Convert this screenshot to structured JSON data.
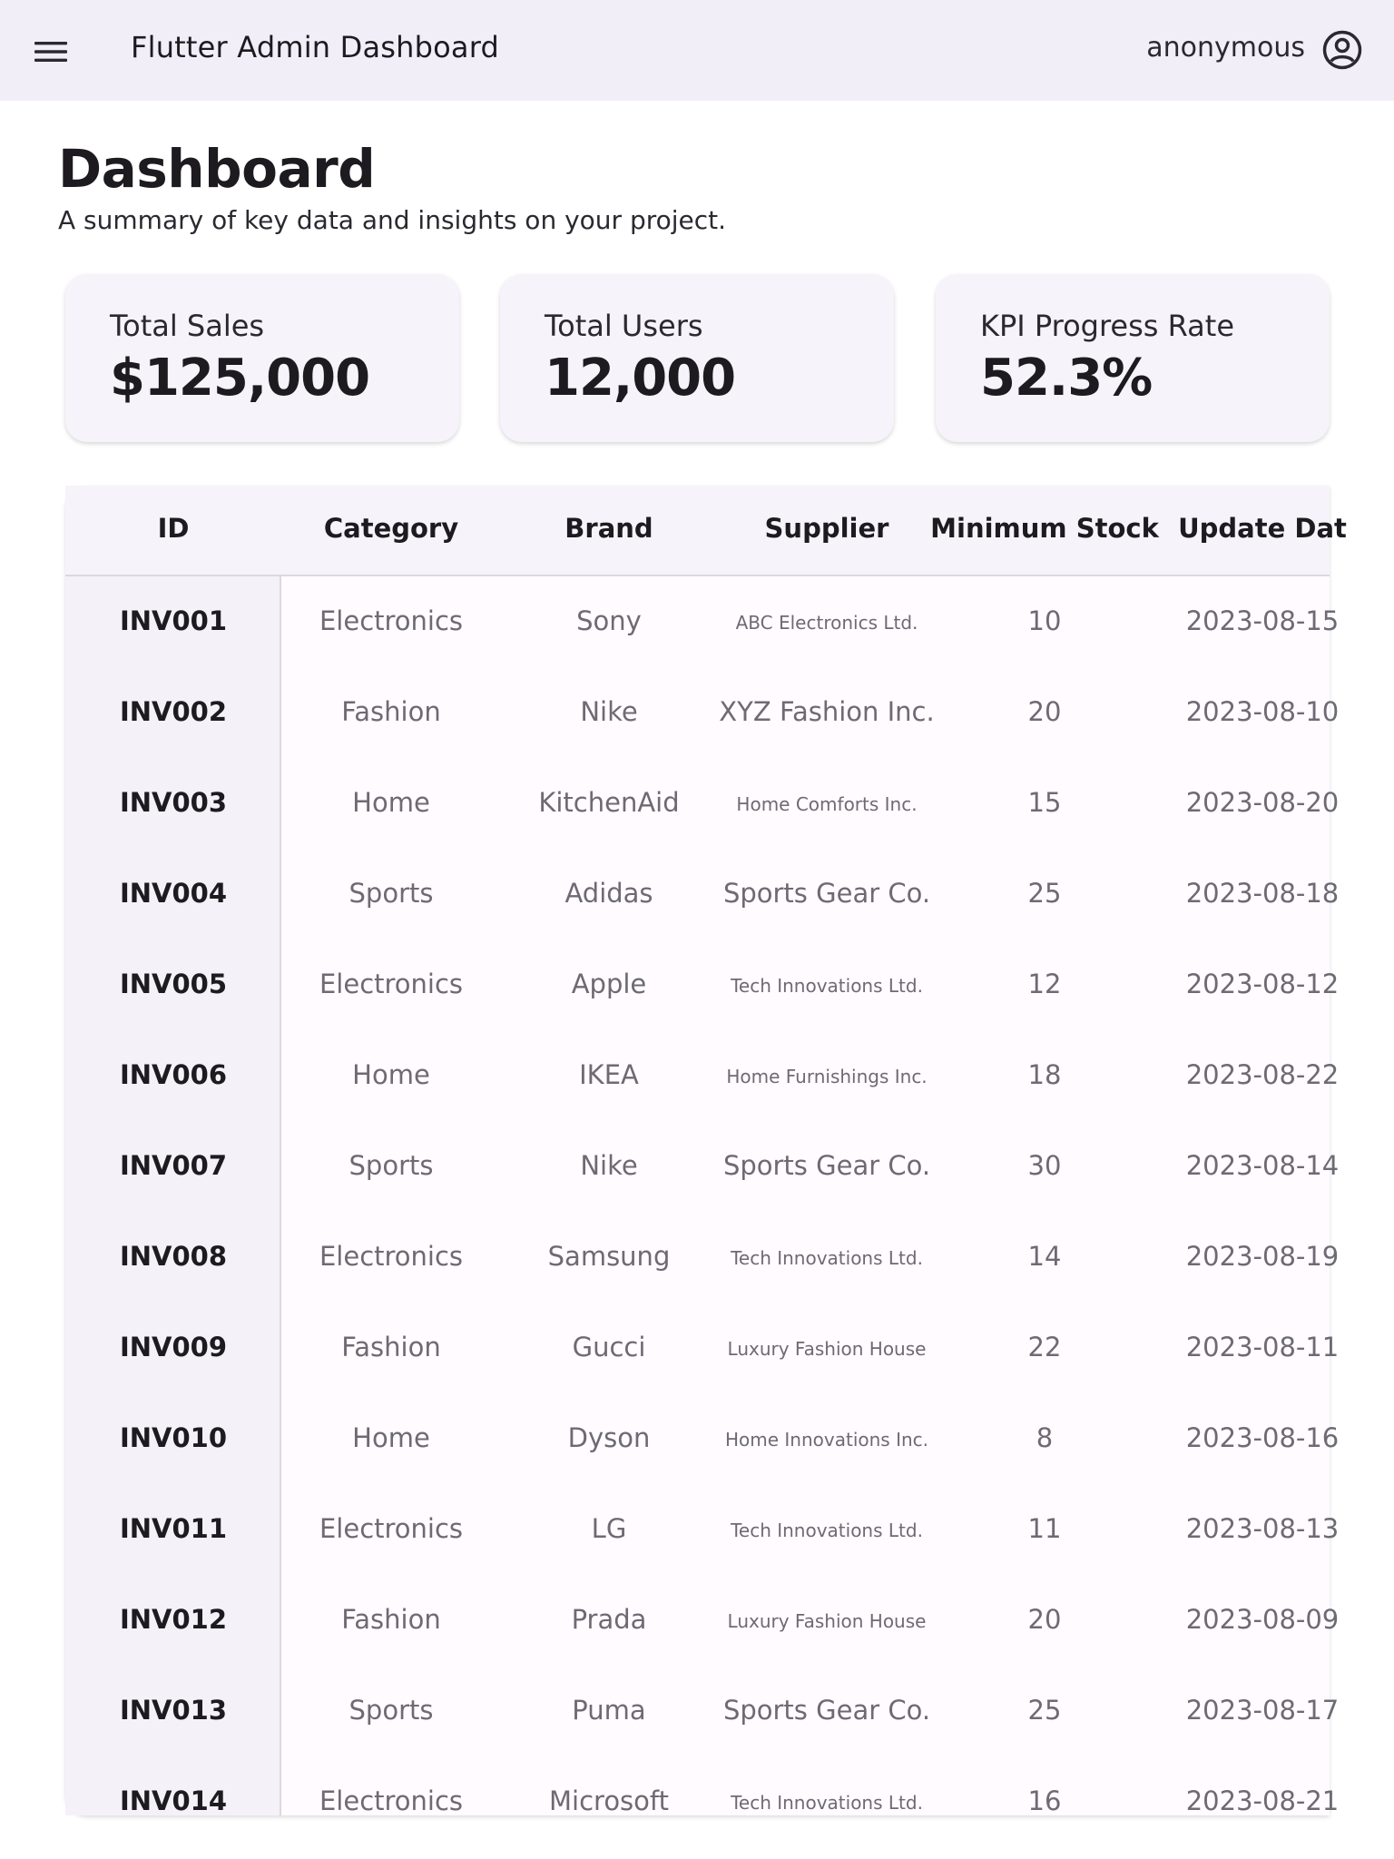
{
  "appbar": {
    "title": "Flutter Admin Dashboard",
    "user": "anonymous",
    "menu_icon": "hamburger-menu-icon",
    "account_icon": "account-circle-icon",
    "background": "#f2eef8"
  },
  "header": {
    "title": "Dashboard",
    "subtitle": "A summary of key data and insights on your project."
  },
  "cards": [
    {
      "label": "Total Sales",
      "value": "$125,000"
    },
    {
      "label": "Total Users",
      "value": "12,000"
    },
    {
      "label": "KPI Progress Rate",
      "value": "52.3%"
    }
  ],
  "table": {
    "columns": [
      "ID",
      "Category",
      "Brand",
      "Supplier",
      "Minimum Stock",
      "Update Dat"
    ],
    "rows": [
      {
        "id": "INV001",
        "category": "Electronics",
        "brand": "Sony",
        "supplier": "ABC Electronics Ltd.",
        "min_stock": "10",
        "update": "2023-08-15"
      },
      {
        "id": "INV002",
        "category": "Fashion",
        "brand": "Nike",
        "supplier": "XYZ Fashion Inc.",
        "min_stock": "20",
        "update": "2023-08-10"
      },
      {
        "id": "INV003",
        "category": "Home",
        "brand": "KitchenAid",
        "supplier": "Home Comforts Inc.",
        "min_stock": "15",
        "update": "2023-08-20"
      },
      {
        "id": "INV004",
        "category": "Sports",
        "brand": "Adidas",
        "supplier": "Sports Gear Co.",
        "min_stock": "25",
        "update": "2023-08-18"
      },
      {
        "id": "INV005",
        "category": "Electronics",
        "brand": "Apple",
        "supplier": "Tech Innovations Ltd.",
        "min_stock": "12",
        "update": "2023-08-12"
      },
      {
        "id": "INV006",
        "category": "Home",
        "brand": "IKEA",
        "supplier": "Home Furnishings Inc.",
        "min_stock": "18",
        "update": "2023-08-22"
      },
      {
        "id": "INV007",
        "category": "Sports",
        "brand": "Nike",
        "supplier": "Sports Gear Co.",
        "min_stock": "30",
        "update": "2023-08-14"
      },
      {
        "id": "INV008",
        "category": "Electronics",
        "brand": "Samsung",
        "supplier": "Tech Innovations Ltd.",
        "min_stock": "14",
        "update": "2023-08-19"
      },
      {
        "id": "INV009",
        "category": "Fashion",
        "brand": "Gucci",
        "supplier": "Luxury Fashion House",
        "min_stock": "22",
        "update": "2023-08-11"
      },
      {
        "id": "INV010",
        "category": "Home",
        "brand": "Dyson",
        "supplier": "Home Innovations Inc.",
        "min_stock": "8",
        "update": "2023-08-16"
      },
      {
        "id": "INV011",
        "category": "Electronics",
        "brand": "LG",
        "supplier": "Tech Innovations Ltd.",
        "min_stock": "11",
        "update": "2023-08-13"
      },
      {
        "id": "INV012",
        "category": "Fashion",
        "brand": "Prada",
        "supplier": "Luxury Fashion House",
        "min_stock": "20",
        "update": "2023-08-09"
      },
      {
        "id": "INV013",
        "category": "Sports",
        "brand": "Puma",
        "supplier": "Sports Gear Co.",
        "min_stock": "25",
        "update": "2023-08-17"
      },
      {
        "id": "INV014",
        "category": "Electronics",
        "brand": "Microsoft",
        "supplier": "Tech Innovations Ltd.",
        "min_stock": "16",
        "update": "2023-08-21"
      }
    ]
  }
}
